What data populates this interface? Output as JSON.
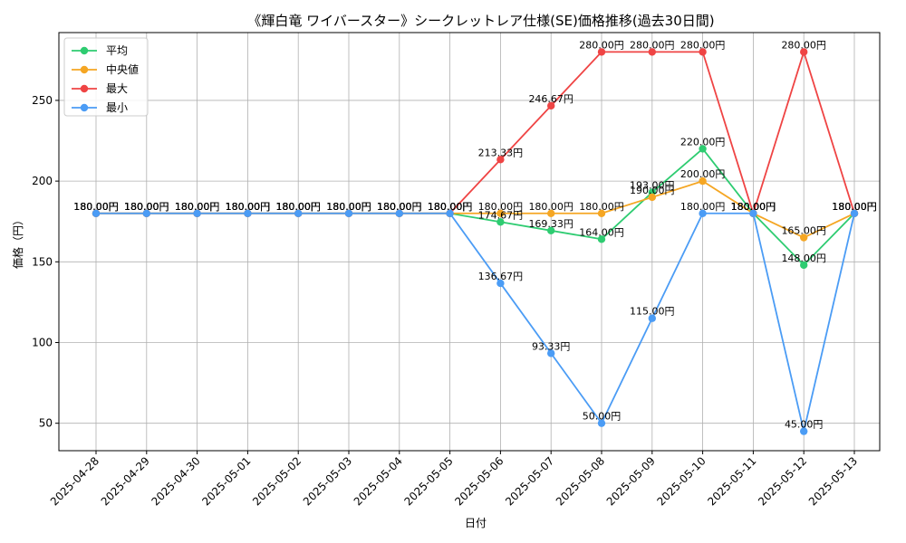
{
  "chart_data": {
    "type": "line",
    "title": "《輝白竜 ワイバースター》シークレットレア仕様(SE)価格推移(過去30日間)",
    "xlabel": "日付",
    "ylabel": "価格（円）",
    "ylim": [
      33,
      292
    ],
    "yticks": [
      50,
      100,
      150,
      200,
      250
    ],
    "grid": true,
    "legend_position": "top-left",
    "categories": [
      "2025-04-28",
      "2025-04-29",
      "2025-04-30",
      "2025-05-01",
      "2025-05-02",
      "2025-05-03",
      "2025-05-04",
      "2025-05-05",
      "2025-05-06",
      "2025-05-07",
      "2025-05-08",
      "2025-05-09",
      "2025-05-10",
      "2025-05-11",
      "2025-05-12",
      "2025-05-13"
    ],
    "series": [
      {
        "name": "平均",
        "color": "#2ecc71",
        "values": [
          180,
          180,
          180,
          180,
          180,
          180,
          180,
          180,
          174.67,
          169.33,
          164,
          193,
          220,
          180,
          148,
          180
        ],
        "labels": [
          "180.00円",
          "180.00円",
          "180.00円",
          "180.00円",
          "180.00円",
          "180.00円",
          "180.00円",
          "180.00円",
          "174.67円",
          "169.33円",
          "164.00円",
          "193.00円",
          "220.00円",
          "180.00円",
          "148.00円",
          "180.00円"
        ]
      },
      {
        "name": "中央値",
        "color": "#f5a623",
        "values": [
          180,
          180,
          180,
          180,
          180,
          180,
          180,
          180,
          180,
          180,
          180,
          190,
          200,
          180,
          165,
          180
        ],
        "labels": [
          "180.00円",
          "180.00円",
          "180.00円",
          "180.00円",
          "180.00円",
          "180.00円",
          "180.00円",
          "180.00円",
          "180.00円",
          "180.00円",
          "180.00円",
          "190.00円",
          "200.00円",
          "180.00円",
          "165.00円",
          "180.00円"
        ]
      },
      {
        "name": "最大",
        "color": "#ef4444",
        "values": [
          180,
          180,
          180,
          180,
          180,
          180,
          180,
          180,
          213.33,
          246.67,
          280,
          280,
          280,
          180,
          280,
          180
        ],
        "labels": [
          "180.00円",
          "180.00円",
          "180.00円",
          "180.00円",
          "180.00円",
          "180.00円",
          "180.00円",
          "180.00円",
          "213.33円",
          "246.67円",
          "280.00円",
          "280.00円",
          "280.00円",
          "180.00円",
          "280.00円",
          "180.00円"
        ]
      },
      {
        "name": "最小",
        "color": "#4b9cf5",
        "values": [
          180,
          180,
          180,
          180,
          180,
          180,
          180,
          180,
          136.67,
          93.33,
          50,
          115,
          180,
          180,
          45,
          180
        ],
        "labels": [
          "180.00円",
          "180.00円",
          "180.00円",
          "180.00円",
          "180.00円",
          "180.00円",
          "180.00円",
          "180.00円",
          "136.67円",
          "93.33円",
          "50.00円",
          "115.00円",
          "180.00円",
          "180.00円",
          "45.00円",
          "180.00円"
        ]
      }
    ]
  }
}
